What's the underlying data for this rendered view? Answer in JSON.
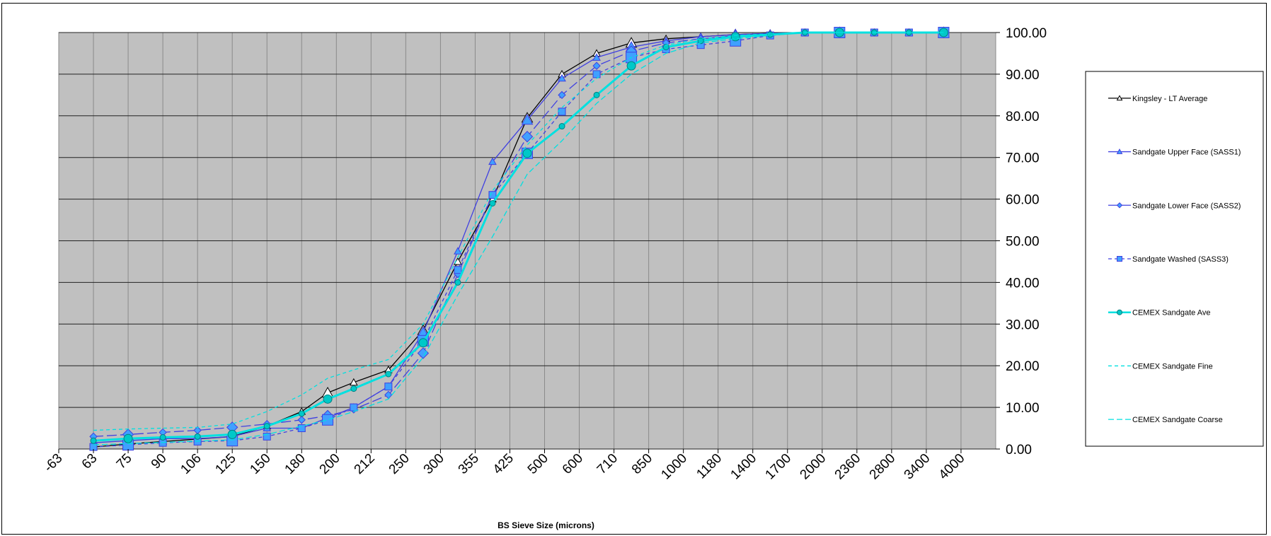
{
  "chart_data": {
    "type": "line",
    "title": "",
    "xlabel": "BS Sieve Size (microns)",
    "ylabel": "",
    "ylim": [
      0,
      100
    ],
    "y_ticks": [
      "0.00",
      "10.00",
      "20.00",
      "30.00",
      "40.00",
      "50.00",
      "60.00",
      "70.00",
      "80.00",
      "90.00",
      "100.00"
    ],
    "y_axis_side": "right",
    "x_categories": [
      "-63",
      "63",
      "75",
      "90",
      "106",
      "125",
      "150",
      "180",
      "200",
      "212",
      "250",
      "300",
      "355",
      "425",
      "500",
      "600",
      "710",
      "850",
      "1000",
      "1180",
      "1400",
      "1700",
      "2000",
      "2360",
      "2800",
      "3400",
      "4000"
    ],
    "grid": true,
    "plot_background": "#c0c0c0",
    "legend_placement": "right",
    "series": [
      {
        "name": "Kingsley - LT Average",
        "color": "#000000",
        "dash": "",
        "marker": "triangle",
        "marker_fill": "#ffffff",
        "marker_size": 5,
        "points": [
          [
            1,
            0.5
          ],
          [
            2,
            1.2
          ],
          [
            3,
            1.8
          ],
          [
            4,
            2.4
          ],
          [
            5,
            3
          ],
          [
            6,
            5.5
          ],
          [
            7,
            9
          ],
          [
            7.75,
            13.5
          ],
          [
            8.5,
            16
          ],
          [
            9.5,
            19
          ],
          [
            10.5,
            28.5
          ],
          [
            11.5,
            45
          ],
          [
            12.5,
            60
          ],
          [
            13.5,
            79.5
          ],
          [
            14.5,
            90
          ],
          [
            15.5,
            95
          ],
          [
            16.5,
            97.5
          ],
          [
            17.5,
            98.5
          ],
          [
            18.5,
            99
          ],
          [
            19.5,
            99.5
          ],
          [
            20.5,
            99.8
          ],
          [
            21.5,
            100
          ],
          [
            22.5,
            100
          ],
          [
            23.5,
            100
          ],
          [
            24.5,
            100
          ],
          [
            25.5,
            100
          ]
        ]
      },
      {
        "name": "Sandgate Upper Face (SASS1)",
        "color": "#4040e0",
        "dash": "",
        "marker": "triangle",
        "marker_fill": "#40a0ff",
        "marker_size": 5,
        "points": [
          [
            1,
            1.5
          ],
          [
            2,
            2
          ],
          [
            3,
            2.5
          ],
          [
            4,
            2.5
          ],
          [
            5,
            3
          ],
          [
            6,
            5
          ],
          [
            7,
            5
          ],
          [
            7.75,
            7.5
          ],
          [
            8.5,
            10
          ],
          [
            9.5,
            15
          ],
          [
            10.5,
            28
          ],
          [
            11.5,
            47.5
          ],
          [
            12.5,
            69
          ],
          [
            13.5,
            79
          ],
          [
            14.5,
            89
          ],
          [
            15.5,
            94
          ],
          [
            16.5,
            96.5
          ],
          [
            17.5,
            98
          ],
          [
            18.5,
            99
          ],
          [
            19.5,
            99.5
          ],
          [
            20.5,
            99.8
          ],
          [
            21.5,
            100
          ],
          [
            22.5,
            100
          ],
          [
            23.5,
            100
          ],
          [
            24.5,
            100
          ],
          [
            25.5,
            100
          ]
        ]
      },
      {
        "name": "Sandgate Lower Face (SASS2)",
        "color": "#4040e0",
        "dash": "14 5",
        "marker": "diamond",
        "marker_fill": "#40a0ff",
        "marker_size": 5,
        "points": [
          [
            1,
            3
          ],
          [
            2,
            3.5
          ],
          [
            3,
            4
          ],
          [
            4,
            4.5
          ],
          [
            5,
            5.2
          ],
          [
            6,
            6
          ],
          [
            7,
            7
          ],
          [
            7.75,
            8
          ],
          [
            8.5,
            9.5
          ],
          [
            9.5,
            13
          ],
          [
            10.5,
            23
          ],
          [
            11.5,
            42
          ],
          [
            12.5,
            61
          ],
          [
            13.5,
            75
          ],
          [
            14.5,
            85
          ],
          [
            15.5,
            92
          ],
          [
            16.5,
            95.5
          ],
          [
            17.5,
            97.5
          ],
          [
            18.5,
            98.5
          ],
          [
            19.5,
            99.2
          ],
          [
            20.5,
            99.6
          ],
          [
            21.5,
            100
          ],
          [
            22.5,
            100
          ],
          [
            23.5,
            100
          ],
          [
            24.5,
            100
          ],
          [
            25.5,
            100
          ]
        ]
      },
      {
        "name": "Sandgate Washed (SASS3)",
        "color": "#4040e0",
        "dash": "5 4",
        "marker": "square",
        "marker_fill": "#40a0ff",
        "marker_size": 5,
        "points": [
          [
            1,
            0.5
          ],
          [
            2,
            1
          ],
          [
            3,
            1.5
          ],
          [
            4,
            1.8
          ],
          [
            5,
            2
          ],
          [
            6,
            3
          ],
          [
            7,
            5
          ],
          [
            7.75,
            7
          ],
          [
            8.5,
            10
          ],
          [
            9.5,
            15
          ],
          [
            10.5,
            26
          ],
          [
            11.5,
            43
          ],
          [
            12.5,
            61
          ],
          [
            13.5,
            71
          ],
          [
            14.5,
            81
          ],
          [
            15.5,
            90
          ],
          [
            16.5,
            94
          ],
          [
            17.5,
            96
          ],
          [
            18.5,
            97
          ],
          [
            19.5,
            98
          ],
          [
            20.5,
            99.3
          ],
          [
            21.5,
            100
          ],
          [
            22.5,
            100
          ],
          [
            23.5,
            100
          ],
          [
            24.5,
            100
          ],
          [
            25.5,
            100
          ]
        ]
      },
      {
        "name": "CEMEX Sandgate Ave",
        "color": "#00e0e0",
        "dash": "",
        "width": 3,
        "marker": "circle",
        "marker_fill": "#00c8c8",
        "marker_size": 4,
        "points": [
          [
            1,
            2
          ],
          [
            2,
            2.5
          ],
          [
            3,
            2.8
          ],
          [
            4,
            3
          ],
          [
            5,
            3.5
          ],
          [
            6,
            5.5
          ],
          [
            7,
            8.5
          ],
          [
            7.75,
            12
          ],
          [
            8.5,
            14.5
          ],
          [
            9.5,
            18
          ],
          [
            10.5,
            25.5
          ],
          [
            11.5,
            40
          ],
          [
            12.5,
            59
          ],
          [
            13.5,
            71
          ],
          [
            14.5,
            77.5
          ],
          [
            15.5,
            85
          ],
          [
            16.5,
            92
          ],
          [
            17.5,
            96.5
          ],
          [
            18.5,
            98
          ],
          [
            19.5,
            99
          ],
          [
            20.5,
            99.5
          ],
          [
            21.5,
            100
          ],
          [
            22.5,
            100
          ],
          [
            23.5,
            100
          ],
          [
            24.5,
            100
          ],
          [
            25.5,
            100
          ]
        ]
      },
      {
        "name": "CEMEX Sandgate Fine",
        "color": "#00e0e0",
        "dash": "5 4",
        "marker": "none",
        "points": [
          [
            1,
            4.5
          ],
          [
            2,
            4.8
          ],
          [
            3,
            5
          ],
          [
            4,
            5.2
          ],
          [
            5,
            6
          ],
          [
            6,
            9
          ],
          [
            7,
            13
          ],
          [
            7.75,
            17
          ],
          [
            8.5,
            19
          ],
          [
            9.5,
            21.5
          ],
          [
            10.5,
            30
          ],
          [
            11.5,
            46
          ],
          [
            12.5,
            62
          ],
          [
            13.5,
            73
          ],
          [
            14.5,
            82
          ],
          [
            15.5,
            89
          ],
          [
            16.5,
            94
          ],
          [
            17.5,
            97
          ],
          [
            18.5,
            98.5
          ],
          [
            19.5,
            99.3
          ],
          [
            20.5,
            99.7
          ],
          [
            21.5,
            100
          ],
          [
            22.5,
            100
          ],
          [
            23.5,
            100
          ],
          [
            24.5,
            100
          ],
          [
            25.5,
            100
          ]
        ]
      },
      {
        "name": "CEMEX Sandgate Coarse",
        "color": "#00e0e0",
        "dash": "8 4",
        "marker": "none",
        "points": [
          [
            1,
            1
          ],
          [
            2,
            1.3
          ],
          [
            3,
            1.6
          ],
          [
            4,
            1.9
          ],
          [
            5,
            2.2
          ],
          [
            6,
            3.5
          ],
          [
            7,
            5.5
          ],
          [
            7.75,
            7
          ],
          [
            8.5,
            9
          ],
          [
            9.5,
            12
          ],
          [
            10.5,
            22
          ],
          [
            11.5,
            37
          ],
          [
            12.5,
            51
          ],
          [
            13.5,
            66
          ],
          [
            14.5,
            74
          ],
          [
            15.5,
            83
          ],
          [
            16.5,
            90
          ],
          [
            17.5,
            95
          ],
          [
            18.5,
            97.5
          ],
          [
            19.5,
            98.5
          ],
          [
            20.5,
            99.3
          ],
          [
            21.5,
            100
          ],
          [
            22.5,
            100
          ],
          [
            23.5,
            100
          ],
          [
            24.5,
            100
          ],
          [
            25.5,
            100
          ]
        ]
      }
    ]
  }
}
